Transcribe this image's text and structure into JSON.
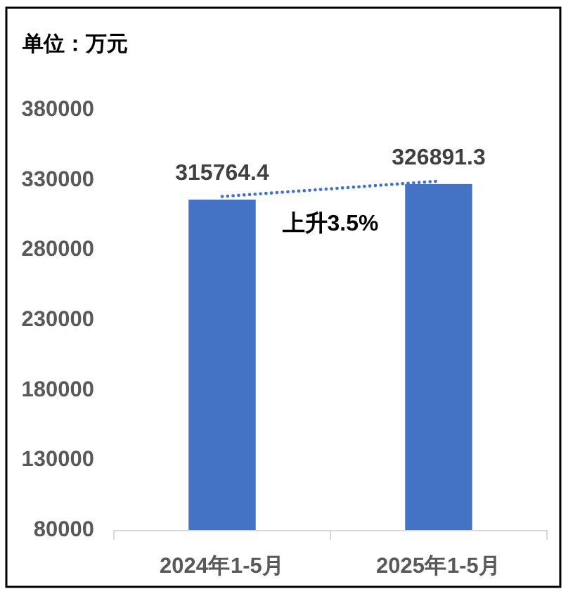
{
  "chart_data": {
    "type": "bar",
    "ylabel": "单位：万元",
    "categories": [
      "2024年1-5月",
      "2025年1-5月"
    ],
    "series": [
      {
        "color": "#4472c4",
        "values": [
          315764.4,
          326891.3
        ],
        "value_labels": [
          "315764.4",
          "326891.3"
        ]
      },
      {
        "type": "line",
        "color": "#4472c4",
        "values": [
          318000,
          329000
        ],
        "line_style": "dotted",
        "marker": "none"
      }
    ],
    "ylim": [
      80000,
      380000
    ],
    "yticks": [
      80000,
      130000,
      180000,
      230000,
      280000,
      330000,
      380000
    ],
    "annotations": [
      "上升3.5%"
    ]
  }
}
